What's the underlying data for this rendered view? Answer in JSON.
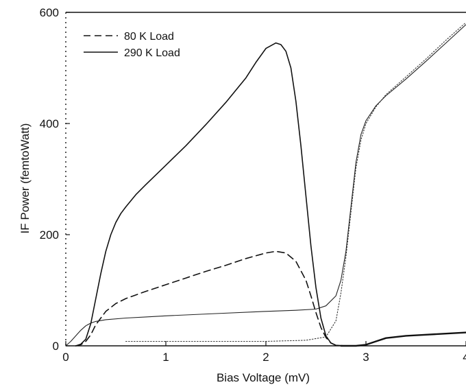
{
  "chart_data": {
    "type": "line",
    "title": "",
    "xlabel": "Bias Voltage (mV)",
    "ylabel": "IF Power (femtoWatt)",
    "xlim": [
      0,
      4
    ],
    "ylim": [
      0,
      600
    ],
    "x_ticks": [
      "0",
      "1",
      "2",
      "3",
      "4"
    ],
    "y_ticks": [
      "0",
      "200",
      "400",
      "600"
    ],
    "grid": false,
    "legend_position": "top-left",
    "series": [
      {
        "name": "80 K Load",
        "style": "dashed",
        "x": [
          0.1,
          0.15,
          0.2,
          0.25,
          0.3,
          0.4,
          0.5,
          0.6,
          0.8,
          1.0,
          1.2,
          1.4,
          1.6,
          1.8,
          2.0,
          2.1,
          2.2,
          2.3,
          2.4,
          2.45,
          2.5,
          2.55,
          2.6,
          2.65,
          2.7
        ],
        "y": [
          0,
          2,
          8,
          20,
          38,
          62,
          76,
          85,
          98,
          110,
          122,
          134,
          145,
          157,
          167,
          170,
          167,
          152,
          118,
          90,
          60,
          33,
          15,
          5,
          1
        ]
      },
      {
        "name": "290 K Load",
        "style": "solid",
        "x": [
          0.1,
          0.15,
          0.2,
          0.25,
          0.3,
          0.35,
          0.4,
          0.45,
          0.5,
          0.55,
          0.6,
          0.7,
          0.8,
          1.0,
          1.2,
          1.4,
          1.6,
          1.8,
          1.9,
          2.0,
          2.1,
          2.15,
          2.2,
          2.25,
          2.3,
          2.35,
          2.4,
          2.45,
          2.5,
          2.55,
          2.6,
          2.65,
          2.7,
          2.8
        ],
        "y": [
          0,
          3,
          12,
          40,
          85,
          130,
          170,
          200,
          222,
          238,
          250,
          272,
          290,
          325,
          360,
          398,
          438,
          482,
          510,
          535,
          545,
          542,
          530,
          500,
          440,
          360,
          270,
          180,
          105,
          50,
          18,
          5,
          1,
          0
        ]
      },
      {
        "name": "",
        "style": "thin-solid",
        "x": [
          0,
          0.05,
          0.1,
          0.15,
          0.2,
          0.25,
          0.3,
          0.4,
          0.6,
          0.8,
          1.0,
          1.5,
          2.0,
          2.3,
          2.5,
          2.6,
          2.7,
          2.75,
          2.8,
          2.85,
          2.9,
          2.95,
          3.0,
          3.1,
          3.2,
          3.4,
          3.6,
          3.8,
          4.0
        ],
        "y": [
          0,
          8,
          18,
          28,
          36,
          41,
          44,
          47,
          50,
          52,
          54,
          58,
          62,
          64,
          66,
          72,
          90,
          118,
          170,
          250,
          330,
          380,
          405,
          432,
          450,
          480,
          512,
          545,
          578
        ]
      },
      {
        "name": "",
        "style": "dotted",
        "x": [
          0.6,
          1.0,
          1.5,
          2.0,
          2.4,
          2.6,
          2.7,
          2.75,
          2.8,
          2.85,
          2.9,
          2.95,
          3.0,
          3.1,
          3.2,
          3.4,
          3.6,
          3.8,
          4.0
        ],
        "y": [
          8,
          8,
          8,
          8,
          10,
          16,
          45,
          95,
          160,
          240,
          320,
          370,
          400,
          430,
          452,
          484,
          516,
          550,
          582
        ]
      },
      {
        "name": "",
        "style": "thick-solid",
        "x": [
          2.75,
          2.8,
          2.9,
          3.0,
          3.1,
          3.2,
          3.4,
          3.6,
          3.8,
          4.0
        ],
        "y": [
          0,
          0,
          0,
          2,
          8,
          14,
          18,
          20,
          22,
          24
        ]
      }
    ]
  }
}
